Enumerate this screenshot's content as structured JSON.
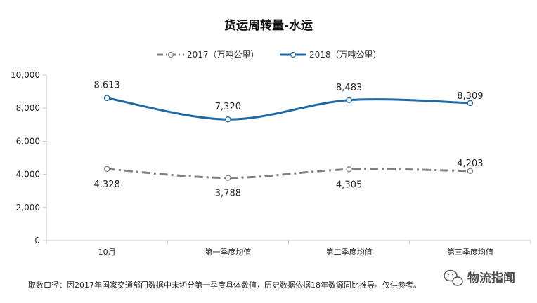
{
  "chart_data": {
    "type": "line",
    "title": "货运周转量-水运",
    "categories": [
      "10月",
      "第一季度均值",
      "第二季度均值",
      "第三季度均值"
    ],
    "series": [
      {
        "name": "2017（万吨公里）",
        "values": [
          4328,
          3788,
          4305,
          4203
        ],
        "color": "#808080",
        "dash": "dash-dot"
      },
      {
        "name": "2018（万吨公里）",
        "values": [
          8613,
          7320,
          8483,
          8309
        ],
        "color": "#1f6aa5",
        "dash": "solid"
      }
    ],
    "data_labels": {
      "2017": [
        "4,328",
        "3,788",
        "4,305",
        "4,203"
      ],
      "2018": [
        "8,613",
        "7,320",
        "8,483",
        "8,309"
      ]
    },
    "ylim": [
      0,
      10000
    ],
    "yticks": [
      0,
      2000,
      4000,
      6000,
      8000,
      10000
    ],
    "ytick_labels": [
      "0",
      "2,000",
      "4,000",
      "6,000",
      "8,000",
      "10,000"
    ],
    "xlabel": "",
    "ylabel": "",
    "legend_position": "top-center",
    "grid": false
  },
  "footnote": "取数口径：因2017年国家交通部门数据中未切分第一季度具体数值，历史数据依据18年数源同比推导。仅供参考。",
  "watermark": {
    "text": "物流指闻",
    "icon": "wechat-icon"
  }
}
